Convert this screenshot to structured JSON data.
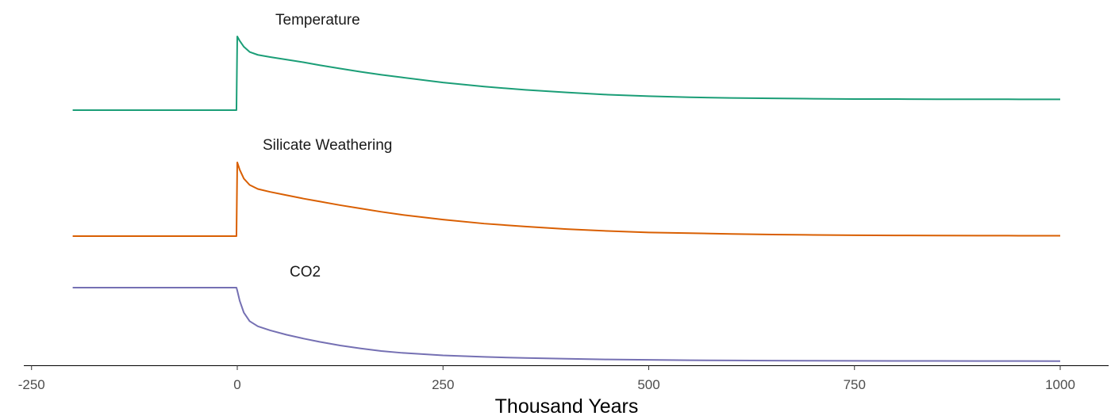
{
  "chart_data": {
    "type": "line",
    "title": "",
    "xlabel": "Thousand Years",
    "ylabel": "",
    "xlim": [
      -250,
      1000
    ],
    "xticks": [
      -250,
      0,
      250,
      500,
      750,
      1000
    ],
    "xtick_labels": [
      "-250",
      "0",
      "250",
      "500",
      "750",
      "1000"
    ],
    "grid": false,
    "legend": "none",
    "series": [
      {
        "name": "Temperature",
        "color": "#1b9e77",
        "ylim": [
          0,
          1
        ],
        "x": [
          -200,
          -1,
          0,
          3,
          8,
          15,
          25,
          40,
          60,
          80,
          100,
          125,
          150,
          175,
          200,
          250,
          300,
          350,
          400,
          450,
          500,
          550,
          600,
          650,
          700,
          750,
          800,
          850,
          900,
          950,
          1000
        ],
        "y": [
          0,
          0,
          1.0,
          0.94,
          0.86,
          0.79,
          0.75,
          0.72,
          0.685,
          0.65,
          0.61,
          0.565,
          0.52,
          0.48,
          0.445,
          0.375,
          0.32,
          0.275,
          0.24,
          0.21,
          0.19,
          0.175,
          0.165,
          0.16,
          0.155,
          0.15,
          0.15,
          0.148,
          0.148,
          0.147,
          0.147
        ]
      },
      {
        "name": "Silicate Weathering",
        "color": "#d95f02",
        "ylim": [
          0,
          1
        ],
        "x": [
          -200,
          -1,
          0,
          3,
          8,
          15,
          25,
          40,
          60,
          80,
          100,
          125,
          150,
          175,
          200,
          250,
          300,
          350,
          400,
          450,
          500,
          550,
          600,
          650,
          700,
          750,
          800,
          850,
          900,
          950,
          1000
        ],
        "y": [
          0,
          0,
          1.0,
          0.9,
          0.78,
          0.695,
          0.64,
          0.6,
          0.555,
          0.51,
          0.47,
          0.42,
          0.375,
          0.33,
          0.29,
          0.225,
          0.17,
          0.13,
          0.095,
          0.07,
          0.05,
          0.04,
          0.03,
          0.022,
          0.016,
          0.012,
          0.01,
          0.008,
          0.007,
          0.006,
          0.005
        ]
      },
      {
        "name": "CO2",
        "color": "#7570b3",
        "ylim": [
          0,
          1
        ],
        "x": [
          -200,
          -1,
          0,
          3,
          8,
          15,
          25,
          40,
          60,
          80,
          100,
          125,
          150,
          175,
          200,
          250,
          300,
          350,
          400,
          450,
          500,
          550,
          600,
          650,
          700,
          750,
          800,
          850,
          900,
          950,
          1000
        ],
        "y": [
          1.0,
          1.0,
          0.96,
          0.82,
          0.66,
          0.545,
          0.475,
          0.42,
          0.36,
          0.31,
          0.265,
          0.215,
          0.175,
          0.14,
          0.115,
          0.08,
          0.06,
          0.045,
          0.035,
          0.025,
          0.02,
          0.015,
          0.012,
          0.01,
          0.008,
          0.007,
          0.006,
          0.005,
          0.004,
          0.004,
          0.003
        ]
      }
    ]
  }
}
